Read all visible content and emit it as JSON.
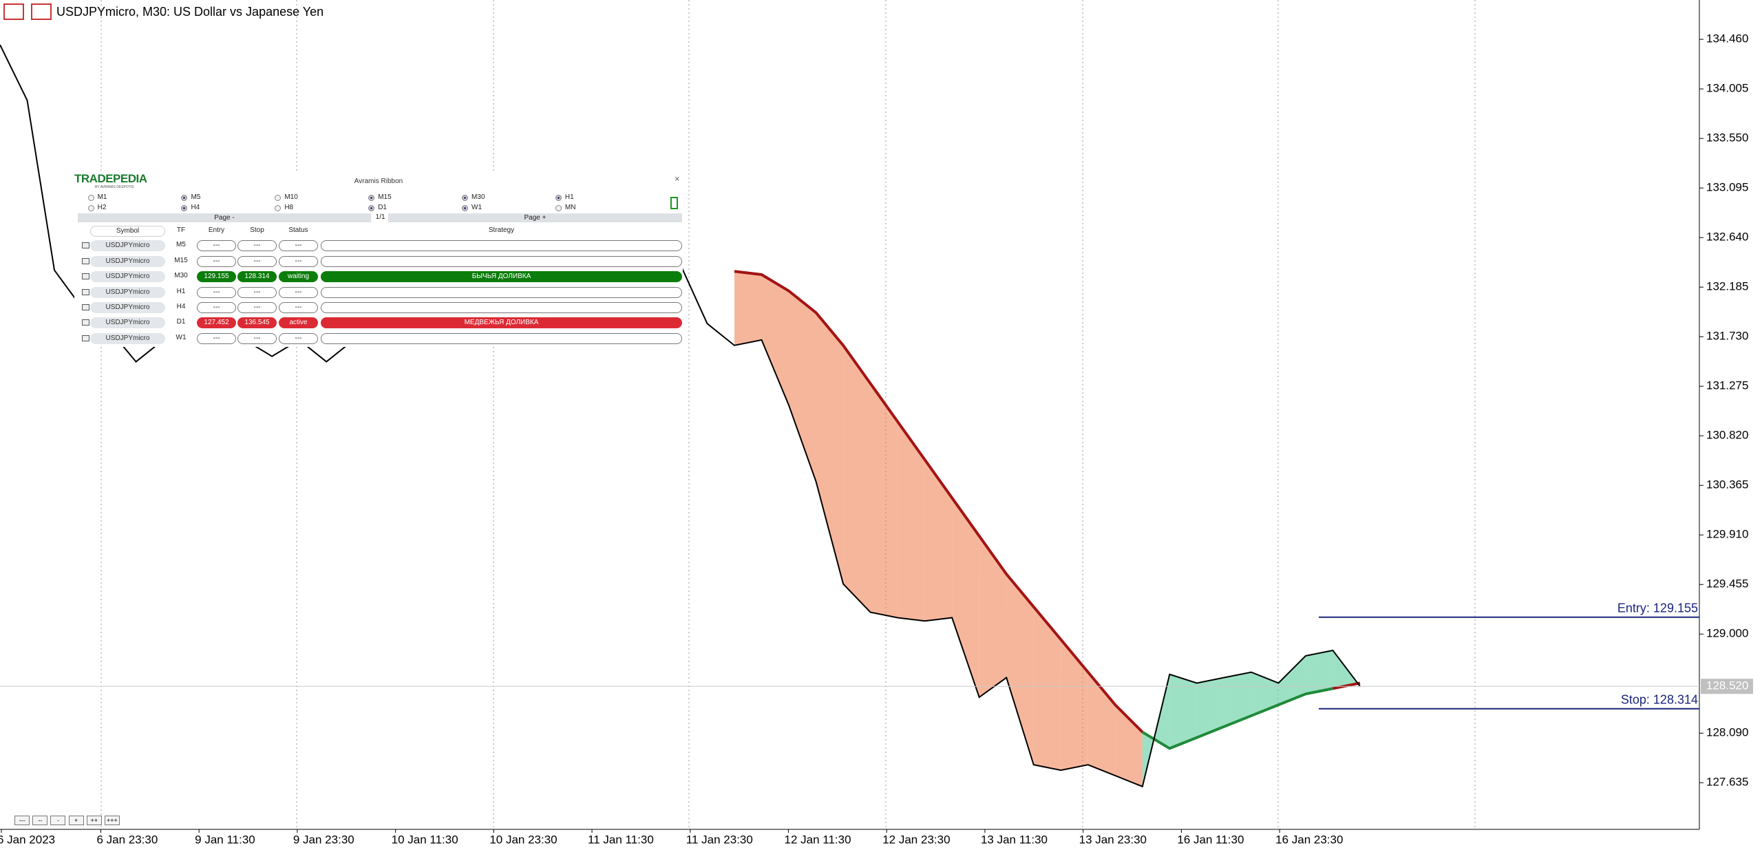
{
  "header": {
    "title": "USDJPYmicro, M30:  US Dollar vs Japanese Yen"
  },
  "toolbar": {
    "buttons": [
      "---",
      "--",
      "-",
      "+",
      "++",
      "+++"
    ]
  },
  "chart_data": {
    "type": "line",
    "values": [
      134.41,
      133.9,
      132.34,
      132.0,
      131.8,
      131.5,
      131.7,
      131.75,
      131.8,
      131.7,
      131.55,
      131.7,
      131.5,
      131.7,
      131.8,
      131.9,
      131.9,
      131.95,
      132.0,
      132.05,
      132.1,
      132.15,
      132.2,
      132.25,
      132.3,
      132.4,
      131.85,
      131.65,
      131.7,
      131.1,
      130.4,
      129.46,
      129.2,
      129.15,
      129.12,
      129.15,
      128.42,
      128.6,
      127.8,
      127.75,
      127.8,
      127.7,
      127.6,
      128.63,
      128.55,
      128.6,
      128.65,
      128.55,
      128.8,
      128.85,
      128.52
    ],
    "ribbon_values": [
      null,
      null,
      null,
      null,
      null,
      null,
      null,
      null,
      null,
      null,
      null,
      null,
      null,
      null,
      null,
      null,
      null,
      null,
      null,
      null,
      null,
      null,
      null,
      null,
      null,
      null,
      null,
      132.33,
      132.3,
      132.15,
      131.95,
      131.65,
      131.3,
      130.95,
      130.6,
      130.25,
      129.9,
      129.55,
      129.25,
      128.95,
      128.65,
      128.35,
      128.1,
      127.95,
      128.05,
      128.15,
      128.25,
      128.35,
      128.45,
      128.5,
      128.55
    ],
    "price_color": "#000000",
    "ribbon_bear_color": "#a31414",
    "ribbon_bull_color": "#1f8a3a",
    "fill_bear_color": "#ee7a4a",
    "fill_bull_color": "#4cc994",
    "ylim": [
      127.207,
      134.821
    ],
    "yticks": [
      {
        "value": 134.46,
        "label": "134.460"
      },
      134.005,
      {
        "value": 133.55,
        "label": "133.550"
      },
      133.095,
      {
        "value": 132.64,
        "label": "132.640"
      },
      132.185,
      {
        "value": 131.73,
        "label": "131.730"
      },
      131.275,
      {
        "value": 130.82,
        "label": "130.820"
      },
      130.365,
      {
        "value": 129.91,
        "label": "129.910"
      },
      129.455,
      {
        "value": 129.0,
        "label": "129.000"
      },
      {
        "value": 128.09,
        "label": "128.090"
      },
      127.635
    ],
    "x_labels": [
      "6 Jan 2023",
      "6 Jan 23:30",
      "9 Jan 11:30",
      "9 Jan 23:30",
      "10 Jan 11:30",
      "10 Jan 23:30",
      "11 Jan 11:30",
      "11 Jan 23:30",
      "12 Jan 11:30",
      "12 Jan 23:30",
      "13 Jan 11:30",
      "13 Jan 23:30",
      "16 Jan 11:30",
      "16 Jan 23:30"
    ],
    "current_price": {
      "value": 128.52,
      "label": "128.520"
    },
    "levels": [
      {
        "label": "Entry: 129.155",
        "value": 129.155,
        "color": "#1a237e"
      },
      {
        "label": "Stop: 128.314",
        "value": 128.314,
        "color": "#1a237e"
      }
    ]
  },
  "panel": {
    "logo": "TRADEPEDIA",
    "logo_sub": "BY AVRAMIS DESPOTIS",
    "title": "Avramis Ribbon",
    "close": "×",
    "timeframes": [
      {
        "label": "M1",
        "checked": false
      },
      {
        "label": "M5",
        "checked": true
      },
      {
        "label": "M10",
        "checked": false
      },
      {
        "label": "M15",
        "checked": true
      },
      {
        "label": "M30",
        "checked": true
      },
      {
        "label": "H1",
        "checked": true
      },
      {
        "label": "H2",
        "checked": false
      },
      {
        "label": "H4",
        "checked": true
      },
      {
        "label": "H8",
        "checked": false
      },
      {
        "label": "D1",
        "checked": true
      },
      {
        "label": "W1",
        "checked": true
      },
      {
        "label": "MN",
        "checked": false
      }
    ],
    "page_prev": "Page -",
    "page_info": "1/1",
    "page_next": "Page +",
    "columns": [
      "Symbol",
      "TF",
      "Entry",
      "Stop",
      "Status",
      "Strategy"
    ],
    "rows": [
      {
        "symbol": "USDJPYmicro",
        "tf": "M5",
        "entry": "---",
        "stop": "---",
        "status": "---",
        "strategy": null,
        "color": null
      },
      {
        "symbol": "USDJPYmicro",
        "tf": "M15",
        "entry": "---",
        "stop": "---",
        "status": "---",
        "strategy": null,
        "color": null
      },
      {
        "symbol": "USDJPYmicro",
        "tf": "M30",
        "entry": "129.155",
        "stop": "128.314",
        "status": "waiting",
        "strategy": "БЫЧЬЯ ДОЛИВКА",
        "color": "#0b7d0b"
      },
      {
        "symbol": "USDJPYmicro",
        "tf": "H1",
        "entry": "---",
        "stop": "---",
        "status": "---",
        "strategy": null,
        "color": null
      },
      {
        "symbol": "USDJPYmicro",
        "tf": "H4",
        "entry": "---",
        "stop": "---",
        "status": "---",
        "strategy": null,
        "color": null
      },
      {
        "symbol": "USDJPYmicro",
        "tf": "D1",
        "entry": "127.452",
        "stop": "136.545",
        "status": "active",
        "strategy": "МЕДВЕЖЬЯ ДОЛИВКА",
        "color": "#dc2a35"
      },
      {
        "symbol": "USDJPYmicro",
        "tf": "W1",
        "entry": "---",
        "stop": "---",
        "status": "---",
        "strategy": null,
        "color": null
      }
    ]
  }
}
